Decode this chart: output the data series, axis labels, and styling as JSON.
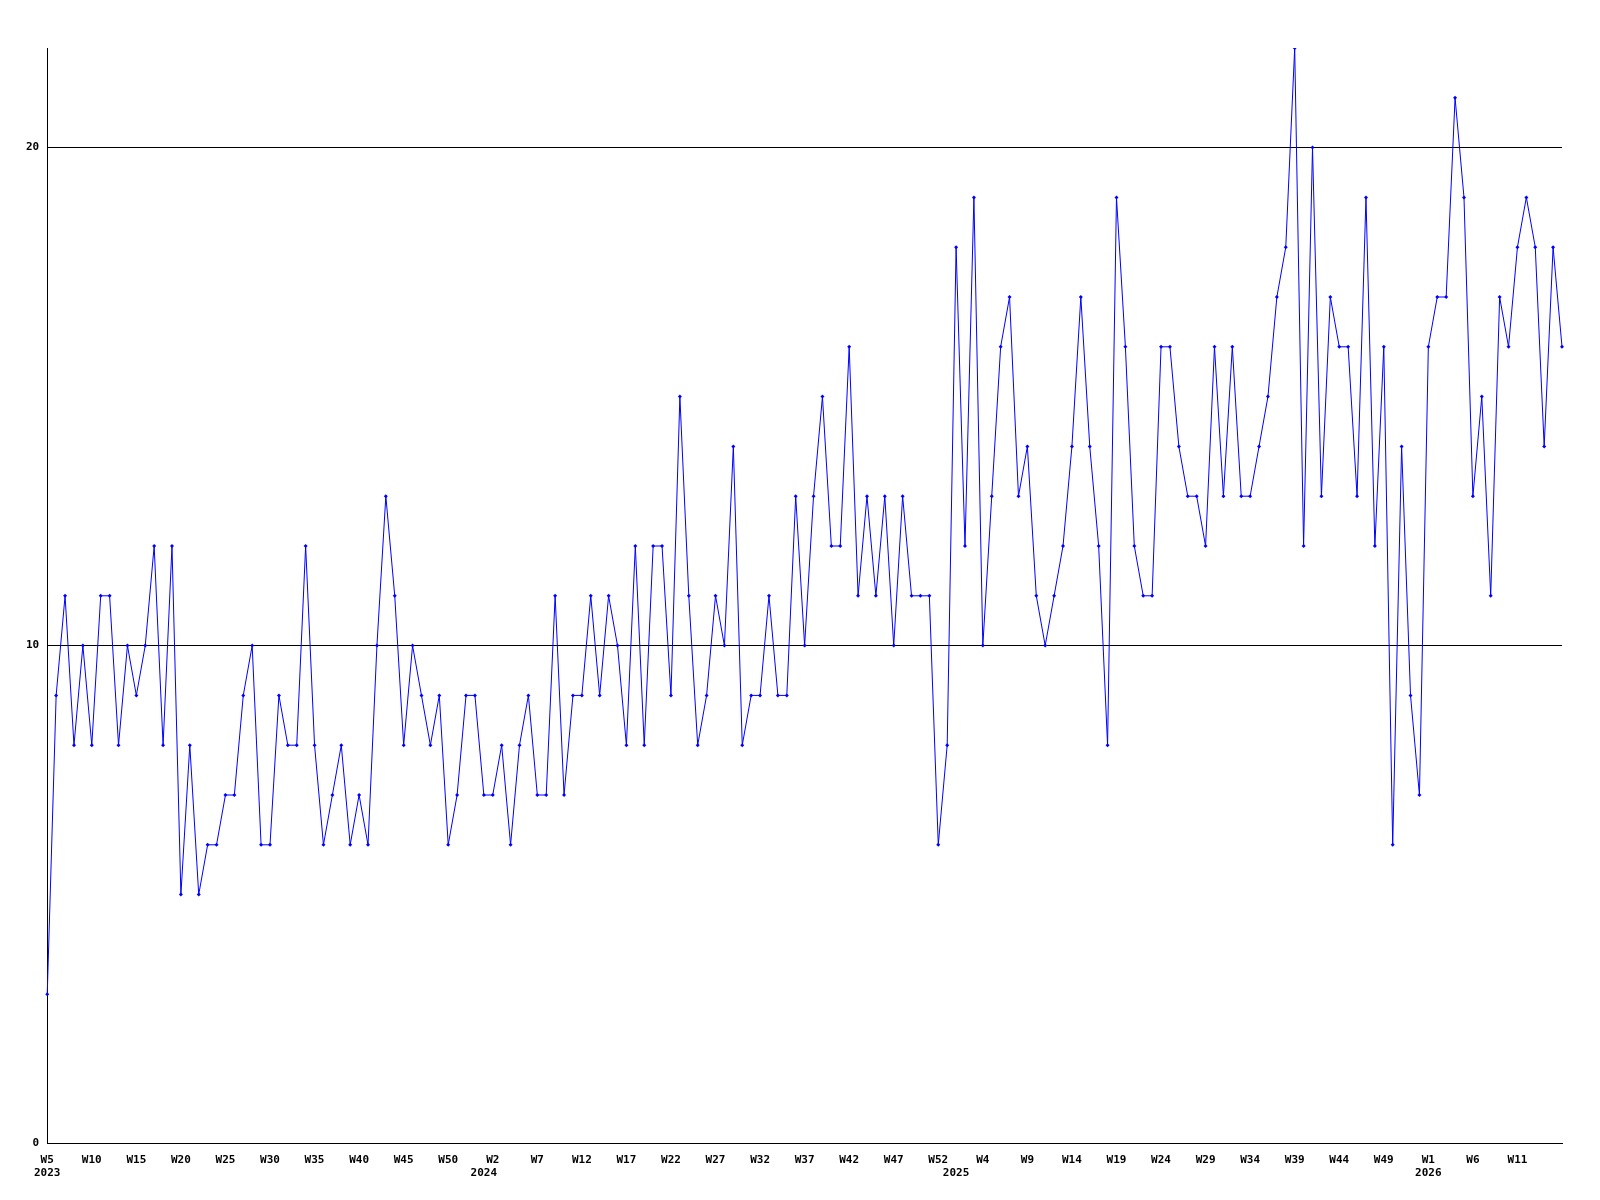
{
  "chart_data": {
    "type": "line",
    "categories": [
      "W5\n2023",
      null,
      null,
      null,
      null,
      "W10",
      null,
      null,
      null,
      null,
      "W15",
      null,
      null,
      null,
      null,
      "W20",
      null,
      null,
      null,
      null,
      "W25",
      null,
      null,
      null,
      null,
      "W30",
      null,
      null,
      null,
      null,
      "W35",
      null,
      null,
      null,
      null,
      "W40",
      null,
      null,
      null,
      null,
      "W45",
      null,
      null,
      null,
      null,
      "W50",
      null,
      null,
      null,
      "\n2024",
      "W2",
      null,
      null,
      null,
      null,
      "W7",
      null,
      null,
      null,
      null,
      "W12",
      null,
      null,
      null,
      null,
      "W17",
      null,
      null,
      null,
      null,
      "W22",
      null,
      null,
      null,
      null,
      "W27",
      null,
      null,
      null,
      null,
      "W32",
      null,
      null,
      null,
      null,
      "W37",
      null,
      null,
      null,
      null,
      "W42",
      null,
      null,
      null,
      null,
      "W47",
      null,
      null,
      null,
      null,
      "W52",
      null,
      "\n2025",
      null,
      null,
      "W4",
      null,
      null,
      null,
      null,
      "W9",
      null,
      null,
      null,
      null,
      "W14",
      null,
      null,
      null,
      null,
      "W19",
      null,
      null,
      null,
      null,
      "W24",
      null,
      null,
      null,
      null,
      "W29",
      null,
      null,
      null,
      null,
      "W34",
      null,
      null,
      null,
      null,
      "W39",
      null,
      null,
      null,
      null,
      "W44",
      null,
      null,
      null,
      null,
      "W49",
      null,
      null,
      null,
      null,
      "W1\n2026",
      null,
      null,
      null,
      null,
      "W6",
      null,
      null,
      null,
      null,
      "W11",
      null,
      null,
      null,
      null,
      null
    ],
    "series": [
      {
        "color": "#0000ff",
        "values": [
          3,
          9,
          11,
          8,
          10,
          8,
          11,
          11,
          8,
          10,
          9,
          10,
          12,
          8,
          12,
          5,
          8,
          5,
          6,
          6,
          7,
          7,
          9,
          10,
          6,
          6,
          9,
          8,
          8,
          12,
          8,
          6,
          7,
          8,
          6,
          7,
          6,
          10,
          13,
          11,
          8,
          10,
          9,
          8,
          9,
          6,
          7,
          9,
          9,
          7,
          7,
          8,
          6,
          8,
          9,
          7,
          7,
          11,
          7,
          9,
          9,
          11,
          9,
          11,
          10,
          8,
          12,
          8,
          12,
          12,
          9,
          15,
          11,
          8,
          9,
          11,
          10,
          14,
          8,
          9,
          9,
          11,
          9,
          9,
          13,
          10,
          13,
          15,
          12,
          12,
          16,
          11,
          13,
          11,
          13,
          10,
          13,
          11,
          11,
          11,
          6,
          8,
          18,
          12,
          19,
          10,
          13,
          16,
          17,
          13,
          14,
          11,
          10,
          11,
          12,
          14,
          17,
          14,
          12,
          8,
          19,
          16,
          12,
          11,
          11,
          16,
          16,
          14,
          13,
          13,
          12,
          16,
          13,
          16,
          13,
          13,
          14,
          15,
          17,
          18,
          22,
          12,
          20,
          13,
          17,
          16,
          16,
          13,
          19,
          12,
          16,
          6,
          14,
          9,
          7,
          16,
          17,
          17,
          21,
          19,
          13,
          15,
          11,
          17,
          16,
          18,
          19,
          18,
          14,
          18,
          16
        ]
      }
    ],
    "ylim": [
      0,
      22
    ],
    "yticks": [
      0,
      10,
      20
    ],
    "grid": "y",
    "marker": "diamond",
    "line_style": "solid",
    "legend": false
  }
}
